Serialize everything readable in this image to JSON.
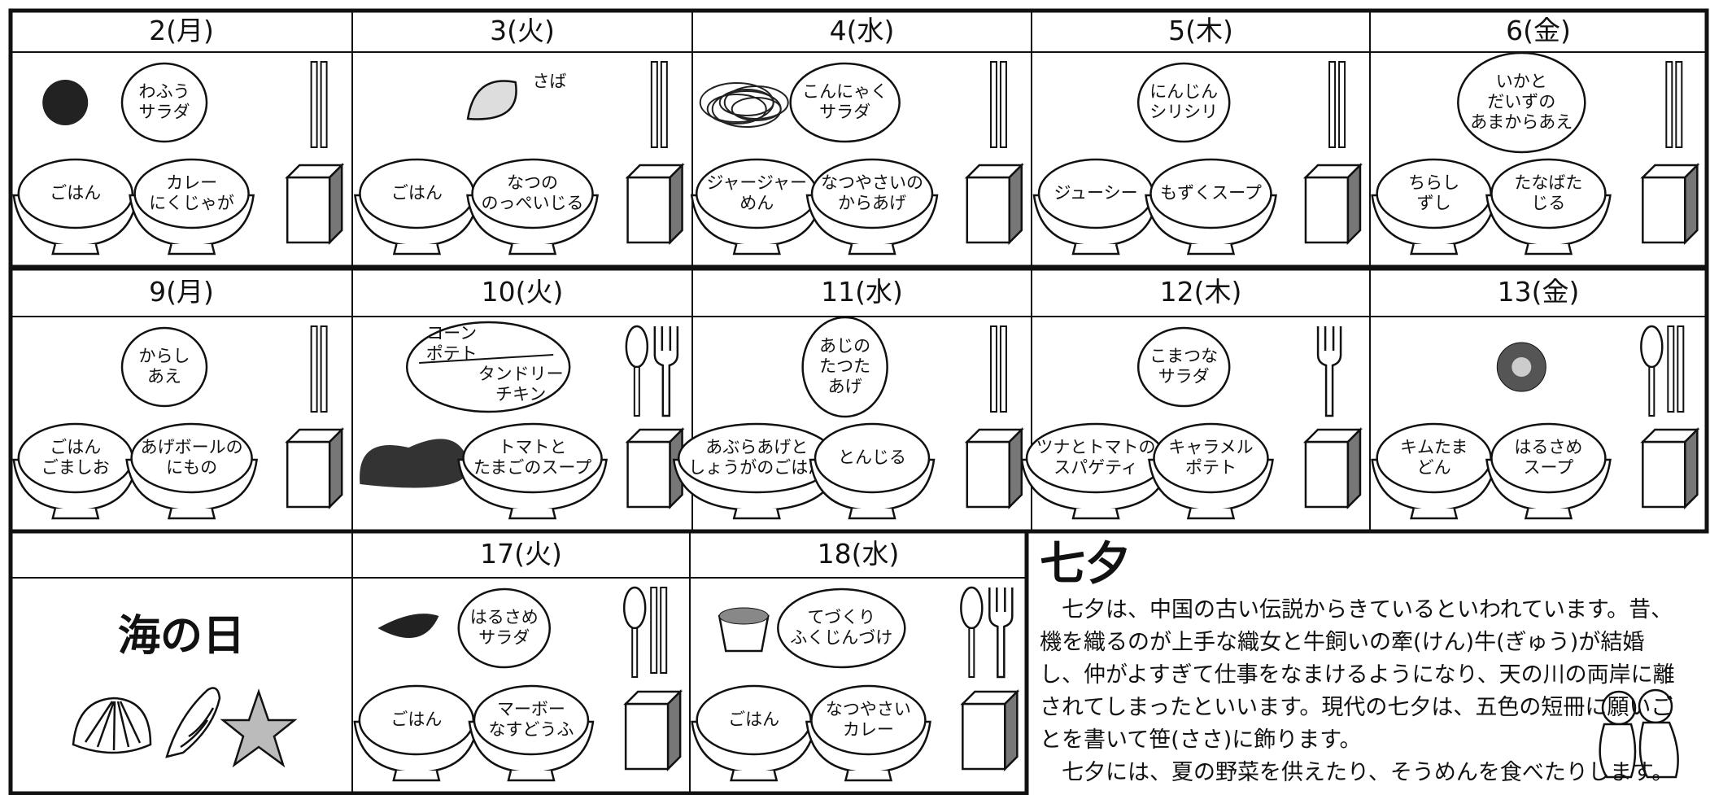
{
  "weeks": [
    {
      "days": [
        {
          "day": "2(月)",
          "sides": [
            [
              "わふう",
              "サラダ"
            ]
          ],
          "bowls": [
            [
              "ごはん"
            ],
            [
              "カレー",
              "にくじゃが"
            ]
          ]
        },
        {
          "day": "3(火)",
          "sides": [
            [
              "さば"
            ]
          ],
          "bowls": [
            [
              "ごはん"
            ],
            [
              "なつの",
              "のっぺいじる"
            ]
          ]
        },
        {
          "day": "4(水)",
          "sides": [
            [
              "こんにゃく",
              "サラダ"
            ]
          ],
          "bowls": [
            [
              "ジャージャー",
              "めん"
            ],
            [
              "なつやさいの",
              "からあげ"
            ]
          ]
        },
        {
          "day": "5(木)",
          "sides": [
            [
              "にんじん",
              "シリシリ"
            ]
          ],
          "bowls": [
            [
              "ジューシー"
            ],
            [
              "もずくスープ"
            ]
          ]
        },
        {
          "day": "6(金)",
          "sides": [
            [
              "いかと",
              "だいずの",
              "あまからあえ"
            ]
          ],
          "bowls": [
            [
              "ちらし",
              "ずし"
            ],
            [
              "たなばた",
              "じる"
            ]
          ]
        }
      ]
    },
    {
      "days": [
        {
          "day": "9(月)",
          "sides": [
            [
              "からし",
              "あえ"
            ]
          ],
          "bowls": [
            [
              "ごはん",
              "ごましお"
            ],
            [
              "あげボールの",
              "にもの"
            ]
          ]
        },
        {
          "day": "10(火)",
          "sides": [
            [
              "コーン",
              "ポテト"
            ],
            [
              "タンドリー",
              "チキン"
            ]
          ],
          "bowls": [
            [
              "トマトと",
              "たまごのスープ"
            ]
          ]
        },
        {
          "day": "11(水)",
          "sides": [
            [
              "あじの",
              "たつた",
              "あげ"
            ]
          ],
          "bowls": [
            [
              "あぶらあげと",
              "しょうがのごはん"
            ],
            [
              "とんじる"
            ]
          ]
        },
        {
          "day": "12(木)",
          "sides": [
            [
              "こまつな",
              "サラダ"
            ]
          ],
          "bowls": [
            [
              "ツナとトマトの",
              "スパゲティ"
            ],
            [
              "キャラメル",
              "ポテト"
            ]
          ]
        },
        {
          "day": "13(金)",
          "sides": [],
          "bowls": [
            [
              "キムたま",
              "どん"
            ],
            [
              "はるさめ",
              "スープ"
            ]
          ]
        }
      ]
    },
    {
      "days": [
        {
          "day": "17(火)",
          "sides": [
            [
              "はるさめ",
              "サラダ"
            ]
          ],
          "bowls": [
            [
              "ごはん"
            ],
            [
              "マーボー",
              "なすどうふ"
            ]
          ]
        },
        {
          "day": "18(水)",
          "sides": [
            [
              "てづくり",
              "ふくじんづけ"
            ]
          ],
          "bowls": [
            [
              "ごはん"
            ],
            [
              "なつやさい",
              "カレー"
            ]
          ]
        }
      ]
    }
  ],
  "holiday": "海の日",
  "tanabata": {
    "title": "七夕",
    "paragraphs": [
      "七夕は、中国の古い伝説からきているといわれています。昔、機を織るのが上手な織女と牛飼いの牽(けん)牛(ぎゅう)が結婚し、仲がよすぎて仕事をなまけるようになり、天の川の両岸に離されてしまったといいます。現代の七夕は、五色の短冊に願いごとを書いて笹(ささ)に飾ります。",
      "七夕には、夏の野菜を供えたり、そうめんを食べたりします。"
    ]
  }
}
